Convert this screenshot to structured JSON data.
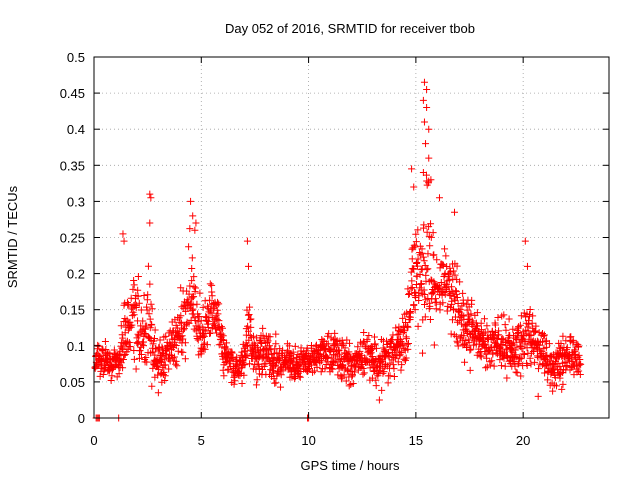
{
  "chart_data": {
    "type": "scatter",
    "title": "Day 052 of 2016, SRMTID for receiver tbob",
    "xlabel": "GPS time / hours",
    "ylabel": "SRMTID / TECUs",
    "xlim": [
      0,
      24
    ],
    "ylim": [
      0,
      0.5
    ],
    "x_ticks": [
      0,
      5,
      10,
      15,
      20
    ],
    "x_tick_labels": [
      "0",
      "5",
      "10",
      "15",
      "20"
    ],
    "y_ticks": [
      0,
      0.05,
      0.1,
      0.15,
      0.2,
      0.25,
      0.3,
      0.35,
      0.4,
      0.45,
      0.5
    ],
    "y_tick_labels": [
      "0",
      "0.05",
      "0.1",
      "0.15",
      "0.2",
      "0.25",
      "0.3",
      "0.35",
      "0.4",
      "0.45",
      "0.5"
    ],
    "grid": true,
    "marker": "plus",
    "point_color": "#ff0000",
    "envelope": {
      "x": [
        0.0,
        0.2,
        0.5,
        0.8,
        1.0,
        1.2,
        1.4,
        1.6,
        1.8,
        2.0,
        2.2,
        2.4,
        2.6,
        2.8,
        3.0,
        3.2,
        3.5,
        3.8,
        4.0,
        4.2,
        4.4,
        4.6,
        4.8,
        5.0,
        5.2,
        5.5,
        5.8,
        6.0,
        6.2,
        6.5,
        6.8,
        7.0,
        7.2,
        7.4,
        7.6,
        7.8,
        8.0,
        8.3,
        8.6,
        9.0,
        9.3,
        9.6,
        10.0,
        10.3,
        10.6,
        11.0,
        11.3,
        11.6,
        12.0,
        12.3,
        12.6,
        13.0,
        13.3,
        13.6,
        14.0,
        14.3,
        14.6,
        14.8,
        15.0,
        15.2,
        15.4,
        15.6,
        15.8,
        16.0,
        16.2,
        16.4,
        16.6,
        16.8,
        17.0,
        17.2,
        17.5,
        17.8,
        18.0,
        18.3,
        18.6,
        19.0,
        19.3,
        19.6,
        20.0,
        20.3,
        20.6,
        20.9,
        21.2,
        21.5,
        21.8,
        22.1,
        22.4,
        22.7
      ],
      "center": [
        0.08,
        0.08,
        0.085,
        0.07,
        0.08,
        0.08,
        0.12,
        0.13,
        0.15,
        0.13,
        0.12,
        0.13,
        0.14,
        0.09,
        0.08,
        0.08,
        0.09,
        0.1,
        0.12,
        0.14,
        0.16,
        0.18,
        0.14,
        0.12,
        0.13,
        0.14,
        0.13,
        0.1,
        0.08,
        0.07,
        0.07,
        0.08,
        0.13,
        0.09,
        0.08,
        0.09,
        0.09,
        0.08,
        0.08,
        0.08,
        0.07,
        0.08,
        0.08,
        0.08,
        0.09,
        0.09,
        0.09,
        0.08,
        0.07,
        0.08,
        0.09,
        0.08,
        0.07,
        0.08,
        0.09,
        0.1,
        0.12,
        0.17,
        0.2,
        0.18,
        0.2,
        0.24,
        0.2,
        0.17,
        0.18,
        0.2,
        0.18,
        0.16,
        0.14,
        0.13,
        0.12,
        0.12,
        0.11,
        0.1,
        0.1,
        0.11,
        0.1,
        0.09,
        0.11,
        0.12,
        0.1,
        0.09,
        0.07,
        0.07,
        0.08,
        0.09,
        0.09,
        0.08
      ],
      "spread": [
        0.02,
        0.02,
        0.02,
        0.02,
        0.02,
        0.02,
        0.05,
        0.05,
        0.06,
        0.05,
        0.05,
        0.06,
        0.08,
        0.03,
        0.02,
        0.03,
        0.03,
        0.03,
        0.04,
        0.05,
        0.07,
        0.06,
        0.05,
        0.04,
        0.04,
        0.04,
        0.03,
        0.03,
        0.02,
        0.02,
        0.02,
        0.03,
        0.05,
        0.02,
        0.03,
        0.03,
        0.03,
        0.03,
        0.03,
        0.02,
        0.02,
        0.02,
        0.02,
        0.02,
        0.02,
        0.03,
        0.03,
        0.03,
        0.02,
        0.02,
        0.03,
        0.03,
        0.03,
        0.03,
        0.03,
        0.03,
        0.04,
        0.06,
        0.07,
        0.06,
        0.1,
        0.11,
        0.08,
        0.05,
        0.05,
        0.05,
        0.05,
        0.05,
        0.05,
        0.04,
        0.04,
        0.04,
        0.03,
        0.03,
        0.03,
        0.04,
        0.04,
        0.03,
        0.04,
        0.04,
        0.04,
        0.03,
        0.03,
        0.03,
        0.03,
        0.03,
        0.03,
        0.02
      ]
    },
    "notable_points": [
      {
        "x": 2.6,
        "y": 0.31
      },
      {
        "x": 2.65,
        "y": 0.305
      },
      {
        "x": 2.6,
        "y": 0.27
      },
      {
        "x": 4.5,
        "y": 0.3
      },
      {
        "x": 4.6,
        "y": 0.28
      },
      {
        "x": 4.75,
        "y": 0.27
      },
      {
        "x": 4.7,
        "y": 0.26
      },
      {
        "x": 1.35,
        "y": 0.255
      },
      {
        "x": 1.4,
        "y": 0.245
      },
      {
        "x": 7.15,
        "y": 0.245
      },
      {
        "x": 7.2,
        "y": 0.21
      },
      {
        "x": 14.8,
        "y": 0.345
      },
      {
        "x": 14.9,
        "y": 0.32
      },
      {
        "x": 15.4,
        "y": 0.465
      },
      {
        "x": 15.5,
        "y": 0.455
      },
      {
        "x": 15.35,
        "y": 0.44
      },
      {
        "x": 15.5,
        "y": 0.43
      },
      {
        "x": 15.4,
        "y": 0.41
      },
      {
        "x": 15.6,
        "y": 0.4
      },
      {
        "x": 15.45,
        "y": 0.38
      },
      {
        "x": 15.6,
        "y": 0.36
      },
      {
        "x": 15.35,
        "y": 0.34
      },
      {
        "x": 15.7,
        "y": 0.33
      },
      {
        "x": 16.1,
        "y": 0.305
      },
      {
        "x": 16.8,
        "y": 0.285
      },
      {
        "x": 20.1,
        "y": 0.245
      },
      {
        "x": 20.2,
        "y": 0.21
      },
      {
        "x": 3.0,
        "y": 0.035
      },
      {
        "x": 13.3,
        "y": 0.025
      },
      {
        "x": 20.7,
        "y": 0.03
      }
    ],
    "baseline_points": [
      {
        "x": 0.1,
        "y": 0.0
      },
      {
        "x": 0.15,
        "y": 0.0
      },
      {
        "x": 0.2,
        "y": 0.0
      },
      {
        "x": 0.25,
        "y": 0.0
      },
      {
        "x": 1.15,
        "y": 0.0
      },
      {
        "x": 9.95,
        "y": 0.0
      },
      {
        "x": 10.0,
        "y": 0.0
      }
    ]
  }
}
